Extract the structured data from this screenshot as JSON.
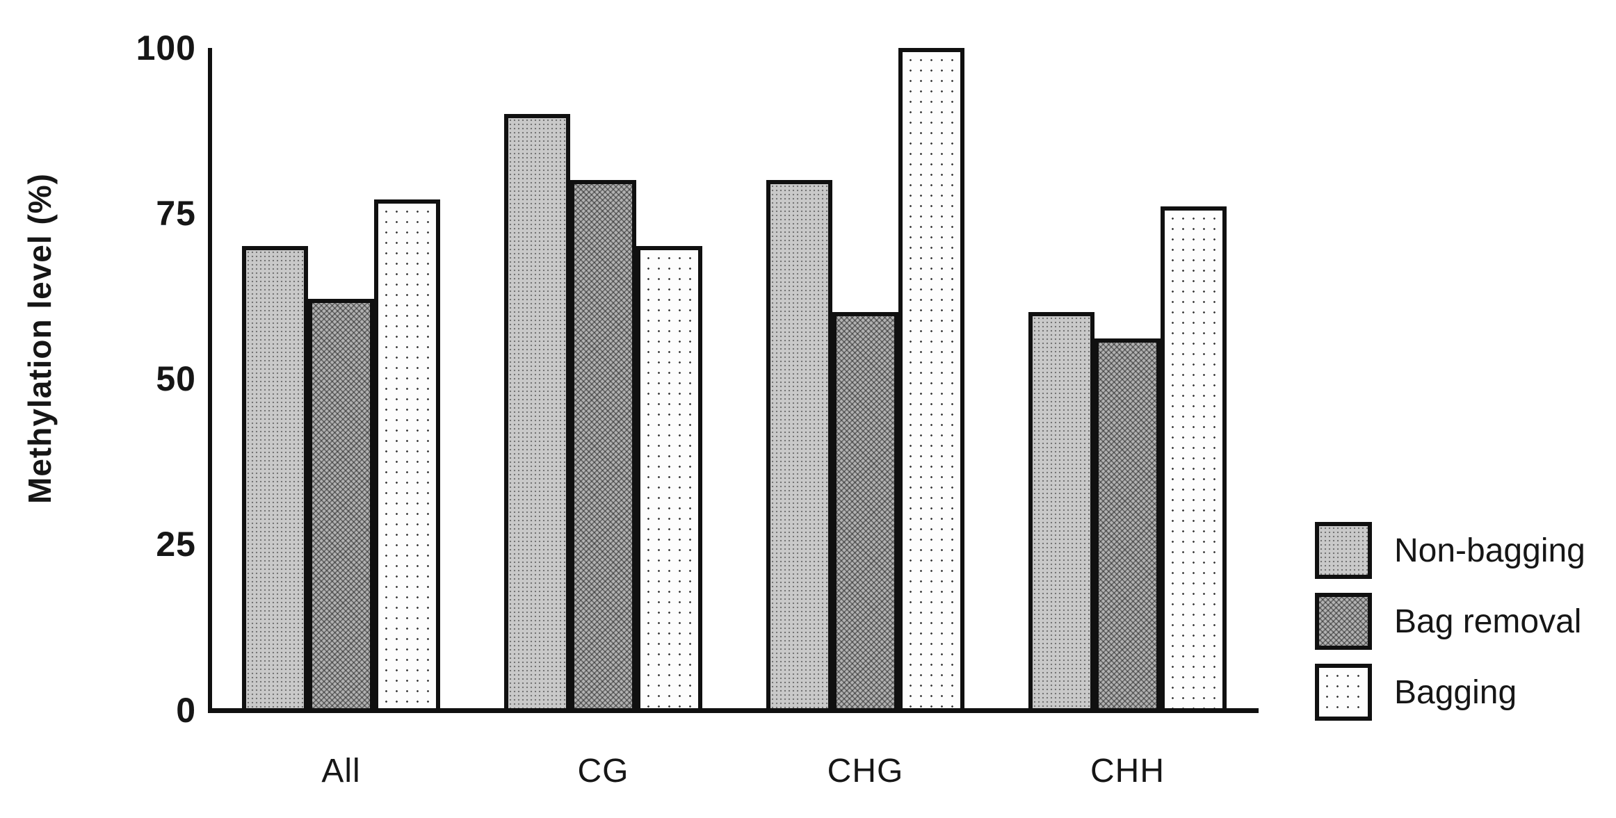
{
  "figure": {
    "background_color": "#ffffff",
    "ink_color": "#101010"
  },
  "chart_data": {
    "type": "bar",
    "title": "",
    "categories": [
      "All",
      "CG",
      "CHG",
      "CHH"
    ],
    "series": [
      {
        "name": "Non-bagging",
        "pattern": "stipple-light",
        "fill": "#c9c9c9",
        "values": [
          70,
          90,
          80,
          60
        ]
      },
      {
        "name": "Bag removal",
        "pattern": "crosshatch-dark",
        "fill": "#8e8e8e",
        "values": [
          62,
          80,
          60,
          56
        ]
      },
      {
        "name": "Bagging",
        "pattern": "dot-sparse-white",
        "fill": "#fdfdfd",
        "values": [
          77,
          70,
          100,
          76
        ]
      }
    ],
    "xlabel": "",
    "ylabel": "Methylation level (%)",
    "ylim": [
      0,
      100
    ],
    "yticks": [
      0,
      25,
      50,
      75,
      100
    ],
    "grid": false,
    "legend_position": "right-bottom",
    "bar_border_color": "#101010"
  }
}
